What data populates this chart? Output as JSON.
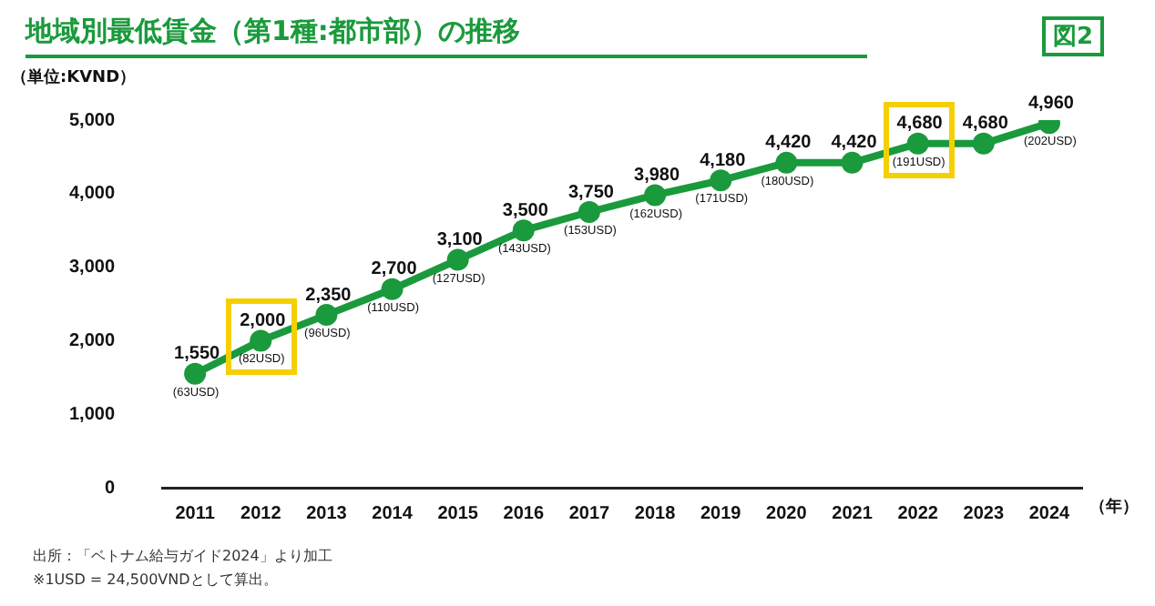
{
  "chart_data": {
    "type": "line",
    "title": "地域別最低賃金（第1種:都市部）の推移",
    "ylabel": "（単位:KVND）",
    "xlabel": "（年）",
    "categories": [
      "2011",
      "2012",
      "2013",
      "2014",
      "2015",
      "2016",
      "2017",
      "2018",
      "2019",
      "2020",
      "2021",
      "2022",
      "2023",
      "2024"
    ],
    "series": [
      {
        "color": "#1a9a3c",
        "values": [
          1550,
          2000,
          2350,
          2700,
          3100,
          3500,
          3750,
          3980,
          4180,
          4420,
          4420,
          4680,
          4680,
          4960
        ],
        "value_labels": [
          "1,550",
          "2,000",
          "2,350",
          "2,700",
          "3,100",
          "3,500",
          "3,750",
          "3,980",
          "4,180",
          "4,420",
          "4,420",
          "4,680",
          "4,680",
          "4,960"
        ]
      }
    ],
    "ylim": [
      0,
      5000
    ],
    "yticks": [
      {
        "value": 0,
        "label": "0"
      },
      {
        "value": 1000,
        "label": "1,000"
      },
      {
        "value": 2000,
        "label": "2,000"
      },
      {
        "value": 3000,
        "label": "3,000"
      },
      {
        "value": 4000,
        "label": "4,000"
      },
      {
        "value": 5000,
        "label": "5,000"
      }
    ],
    "grid": false,
    "legend": false,
    "marker": "circle",
    "line_style": "solid",
    "annotations": [
      "図2",
      "出所：「ベトナム給与ガイド2024」より加工",
      "※1USD = 24,500VNDとして算出。",
      {
        "text": "(63USD)",
        "x": "2011",
        "y": 1550
      },
      {
        "text": "(82USD)",
        "x": "2012",
        "y": 2000
      },
      {
        "text": "(96USD)",
        "x": "2013",
        "y": 2350
      },
      {
        "text": "(110USD)",
        "x": "2014",
        "y": 2700
      },
      {
        "text": "(127USD)",
        "x": "2015",
        "y": 3100
      },
      {
        "text": "(143USD)",
        "x": "2016",
        "y": 3500
      },
      {
        "text": "(153USD)",
        "x": "2017",
        "y": 3750
      },
      {
        "text": "(162USD)",
        "x": "2018",
        "y": 3980
      },
      {
        "text": "(171USD)",
        "x": "2019",
        "y": 4180
      },
      {
        "text": "(180USD)",
        "x": "2020",
        "y": 4420
      },
      {
        "text": "(191USD)",
        "x": "2022",
        "y": 4680
      },
      {
        "text": "(202USD)",
        "x": "2024",
        "y": 4960
      }
    ]
  }
}
